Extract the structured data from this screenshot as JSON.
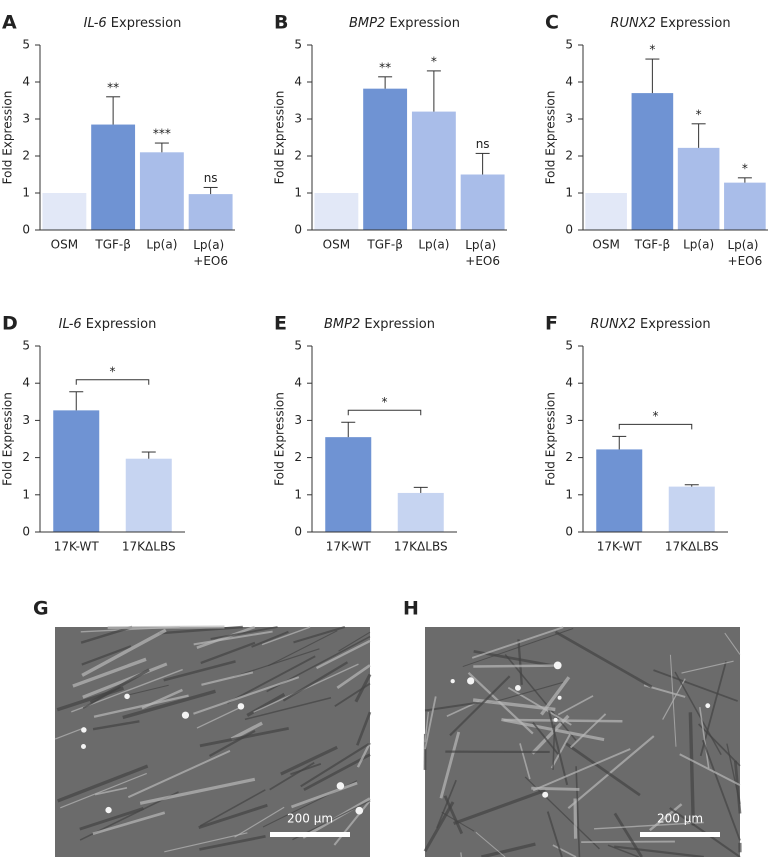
{
  "chart_data": [
    {
      "type": "bar",
      "panel": "A",
      "title": "IL-6 Expression",
      "ylabel": "Fold Expression",
      "categories": [
        "OSM",
        "TGF-β",
        "Lp(a)",
        "Lp(a) +EO6"
      ],
      "values": [
        1,
        2.85,
        2.1,
        0.97
      ],
      "errors": [
        0,
        0.75,
        0.25,
        0.18
      ],
      "colors": [
        "#e2e8f7",
        "#6f93d3",
        "#a9bde9",
        "#a9bde9"
      ],
      "significance": [
        null,
        "**",
        "***",
        "ns"
      ],
      "ylim": [
        0,
        5
      ],
      "yticks": [
        0,
        1,
        2,
        3,
        4,
        5
      ]
    },
    {
      "type": "bar",
      "panel": "B",
      "title": "BMP2 Expression",
      "ylabel": "Fold Expression",
      "categories": [
        "OSM",
        "TGF-β",
        "Lp(a)",
        "Lp(a) +EO6"
      ],
      "values": [
        1,
        3.82,
        3.2,
        1.5
      ],
      "errors": [
        0,
        0.32,
        1.1,
        0.57
      ],
      "colors": [
        "#e2e8f7",
        "#6f93d3",
        "#a9bde9",
        "#a9bde9"
      ],
      "significance": [
        null,
        "**",
        "*",
        "ns"
      ],
      "ylim": [
        0,
        5
      ],
      "yticks": [
        0,
        1,
        2,
        3,
        4,
        5
      ]
    },
    {
      "type": "bar",
      "panel": "C",
      "title": "RUNX2 Expression",
      "ylabel": "Fold Expression",
      "categories": [
        "OSM",
        "TGF-β",
        "Lp(a)",
        "Lp(a) +EO6"
      ],
      "values": [
        1,
        3.7,
        2.22,
        1.28
      ],
      "errors": [
        0,
        0.92,
        0.65,
        0.13
      ],
      "colors": [
        "#e2e8f7",
        "#6f93d3",
        "#a9bde9",
        "#a9bde9"
      ],
      "significance": [
        null,
        "*",
        "*",
        "*"
      ],
      "ylim": [
        0,
        5
      ],
      "yticks": [
        0,
        1,
        2,
        3,
        4,
        5
      ]
    },
    {
      "type": "bar",
      "panel": "D",
      "title": "IL-6 Expression",
      "ylabel": "Fold Expression",
      "categories": [
        "17K-WT",
        "17KΔLBS"
      ],
      "values": [
        3.27,
        1.97
      ],
      "errors": [
        0.5,
        0.18
      ],
      "colors": [
        "#6f93d3",
        "#c6d4f1"
      ],
      "bracket": "*",
      "ylim": [
        0,
        5
      ],
      "yticks": [
        0,
        1,
        2,
        3,
        4,
        5
      ]
    },
    {
      "type": "bar",
      "panel": "E",
      "title": "BMP2 Expression",
      "ylabel": "Fold Expression",
      "categories": [
        "17K-WT",
        "17KΔLBS"
      ],
      "values": [
        2.55,
        1.05
      ],
      "errors": [
        0.4,
        0.15
      ],
      "colors": [
        "#6f93d3",
        "#c6d4f1"
      ],
      "bracket": "*",
      "ylim": [
        0,
        5
      ],
      "yticks": [
        0,
        1,
        2,
        3,
        4,
        5
      ]
    },
    {
      "type": "bar",
      "panel": "F",
      "title": "RUNX2 Expression",
      "ylabel": "Fold Expression",
      "categories": [
        "17K-WT",
        "17KΔLBS"
      ],
      "values": [
        2.22,
        1.22
      ],
      "errors": [
        0.35,
        0.05
      ],
      "colors": [
        "#6f93d3",
        "#c6d4f1"
      ],
      "bracket": "*",
      "ylim": [
        0,
        5
      ],
      "yticks": [
        0,
        1,
        2,
        3,
        4,
        5
      ]
    }
  ],
  "images": [
    {
      "panel": "G",
      "scale_label": "200 µm"
    },
    {
      "panel": "H",
      "scale_label": "200 µm"
    }
  ]
}
